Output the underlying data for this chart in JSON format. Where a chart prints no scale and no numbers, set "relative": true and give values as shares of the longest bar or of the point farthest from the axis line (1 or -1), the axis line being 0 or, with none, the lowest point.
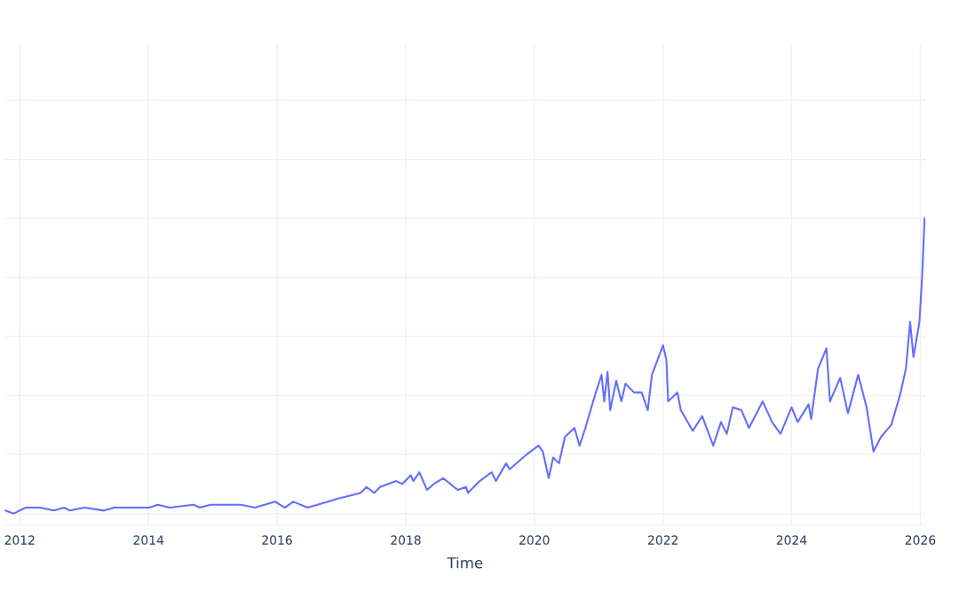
{
  "chart_data": {
    "type": "line",
    "xlabel": "Time",
    "relative": true,
    "grid": true,
    "legend": false,
    "xlim": [
      "2011-10-08",
      "2026-01-30"
    ],
    "xticks": [
      {
        "value": "2012-01-01",
        "label": "2012"
      },
      {
        "value": "2014-01-01",
        "label": "2014"
      },
      {
        "value": "2016-01-01",
        "label": "2016"
      },
      {
        "value": "2018-01-01",
        "label": "2018"
      },
      {
        "value": "2020-01-01",
        "label": "2020"
      },
      {
        "value": "2022-01-01",
        "label": "2022"
      },
      {
        "value": "2024-01-01",
        "label": "2024"
      },
      {
        "value": "2026-01-01",
        "label": "2026"
      }
    ],
    "series": [
      {
        "color": "#636efa",
        "x": [
          "2011-10-11",
          "2011-11-28",
          "2012-02-04",
          "2012-04-26",
          "2012-07-13",
          "2012-09-09",
          "2012-10-12",
          "2013-01-03",
          "2013-04-24",
          "2013-06-21",
          "2013-09-02",
          "2014-01-05",
          "2014-02-23",
          "2014-05-01",
          "2014-09-14",
          "2014-10-18",
          "2014-12-20",
          "2015-06-07",
          "2015-08-28",
          "2015-12-22",
          "2016-02-14",
          "2016-04-02",
          "2016-06-23",
          "2016-10-17",
          "2016-12-10",
          "2017-04-19",
          "2017-05-23",
          "2017-07-06",
          "2017-08-08",
          "2017-11-08",
          "2017-12-12",
          "2018-01-30",
          "2018-02-13",
          "2018-03-19",
          "2018-05-02",
          "2018-06-09",
          "2018-08-01",
          "2018-10-23",
          "2018-12-10",
          "2018-12-20",
          "2019-02-25",
          "2019-05-04",
          "2019-05-28",
          "2019-07-25",
          "2019-08-14",
          "2019-11-18",
          "2020-01-25",
          "2020-02-18",
          "2020-03-23",
          "2020-04-17",
          "2020-05-20",
          "2020-06-23",
          "2020-08-16",
          "2020-09-14",
          "2020-10-17",
          "2020-12-10",
          "2021-01-17",
          "2021-02-01",
          "2021-02-20",
          "2021-03-07",
          "2021-04-10",
          "2021-05-09",
          "2021-06-02",
          "2021-07-20",
          "2021-09-02",
          "2021-10-06",
          "2021-10-30",
          "2022-01-01",
          "2022-01-20",
          "2022-01-30",
          "2022-03-24",
          "2022-04-12",
          "2022-06-19",
          "2022-08-11",
          "2022-10-13",
          "2022-11-26",
          "2022-12-29",
          "2023-02-01",
          "2023-03-22",
          "2023-05-04",
          "2023-07-21",
          "2023-09-12",
          "2023-10-30",
          "2024-01-01",
          "2024-02-04",
          "2024-04-07",
          "2024-04-21",
          "2024-05-30",
          "2024-07-17",
          "2024-08-06",
          "2024-10-03",
          "2024-11-16",
          "2025-01-13",
          "2025-03-02",
          "2025-04-10",
          "2025-05-23",
          "2025-07-20",
          "2025-09-07",
          "2025-10-11",
          "2025-11-04",
          "2025-11-23",
          "2025-12-27",
          "2026-01-11",
          "2026-01-25"
        ],
        "values": [
          0.01,
          0,
          0.02,
          0.02,
          0.01,
          0.02,
          0.01,
          0.02,
          0.01,
          0.02,
          0.02,
          0.02,
          0.03,
          0.02,
          0.03,
          0.02,
          0.03,
          0.03,
          0.02,
          0.04,
          0.02,
          0.04,
          0.02,
          0.04,
          0.05,
          0.07,
          0.09,
          0.07,
          0.09,
          0.11,
          0.1,
          0.13,
          0.11,
          0.14,
          0.08,
          0.1,
          0.12,
          0.08,
          0.09,
          0.07,
          0.11,
          0.14,
          0.11,
          0.17,
          0.15,
          0.2,
          0.23,
          0.21,
          0.12,
          0.19,
          0.17,
          0.26,
          0.29,
          0.23,
          0.29,
          0.4,
          0.47,
          0.38,
          0.48,
          0.35,
          0.45,
          0.38,
          0.44,
          0.41,
          0.41,
          0.35,
          0.47,
          0.57,
          0.52,
          0.38,
          0.41,
          0.35,
          0.28,
          0.33,
          0.23,
          0.31,
          0.27,
          0.36,
          0.35,
          0.29,
          0.38,
          0.31,
          0.27,
          0.36,
          0.31,
          0.37,
          0.32,
          0.49,
          0.56,
          0.38,
          0.46,
          0.34,
          0.47,
          0.36,
          0.21,
          0.26,
          0.3,
          0.4,
          0.49,
          0.65,
          0.53,
          0.65,
          0.8,
          1
        ]
      }
    ]
  }
}
